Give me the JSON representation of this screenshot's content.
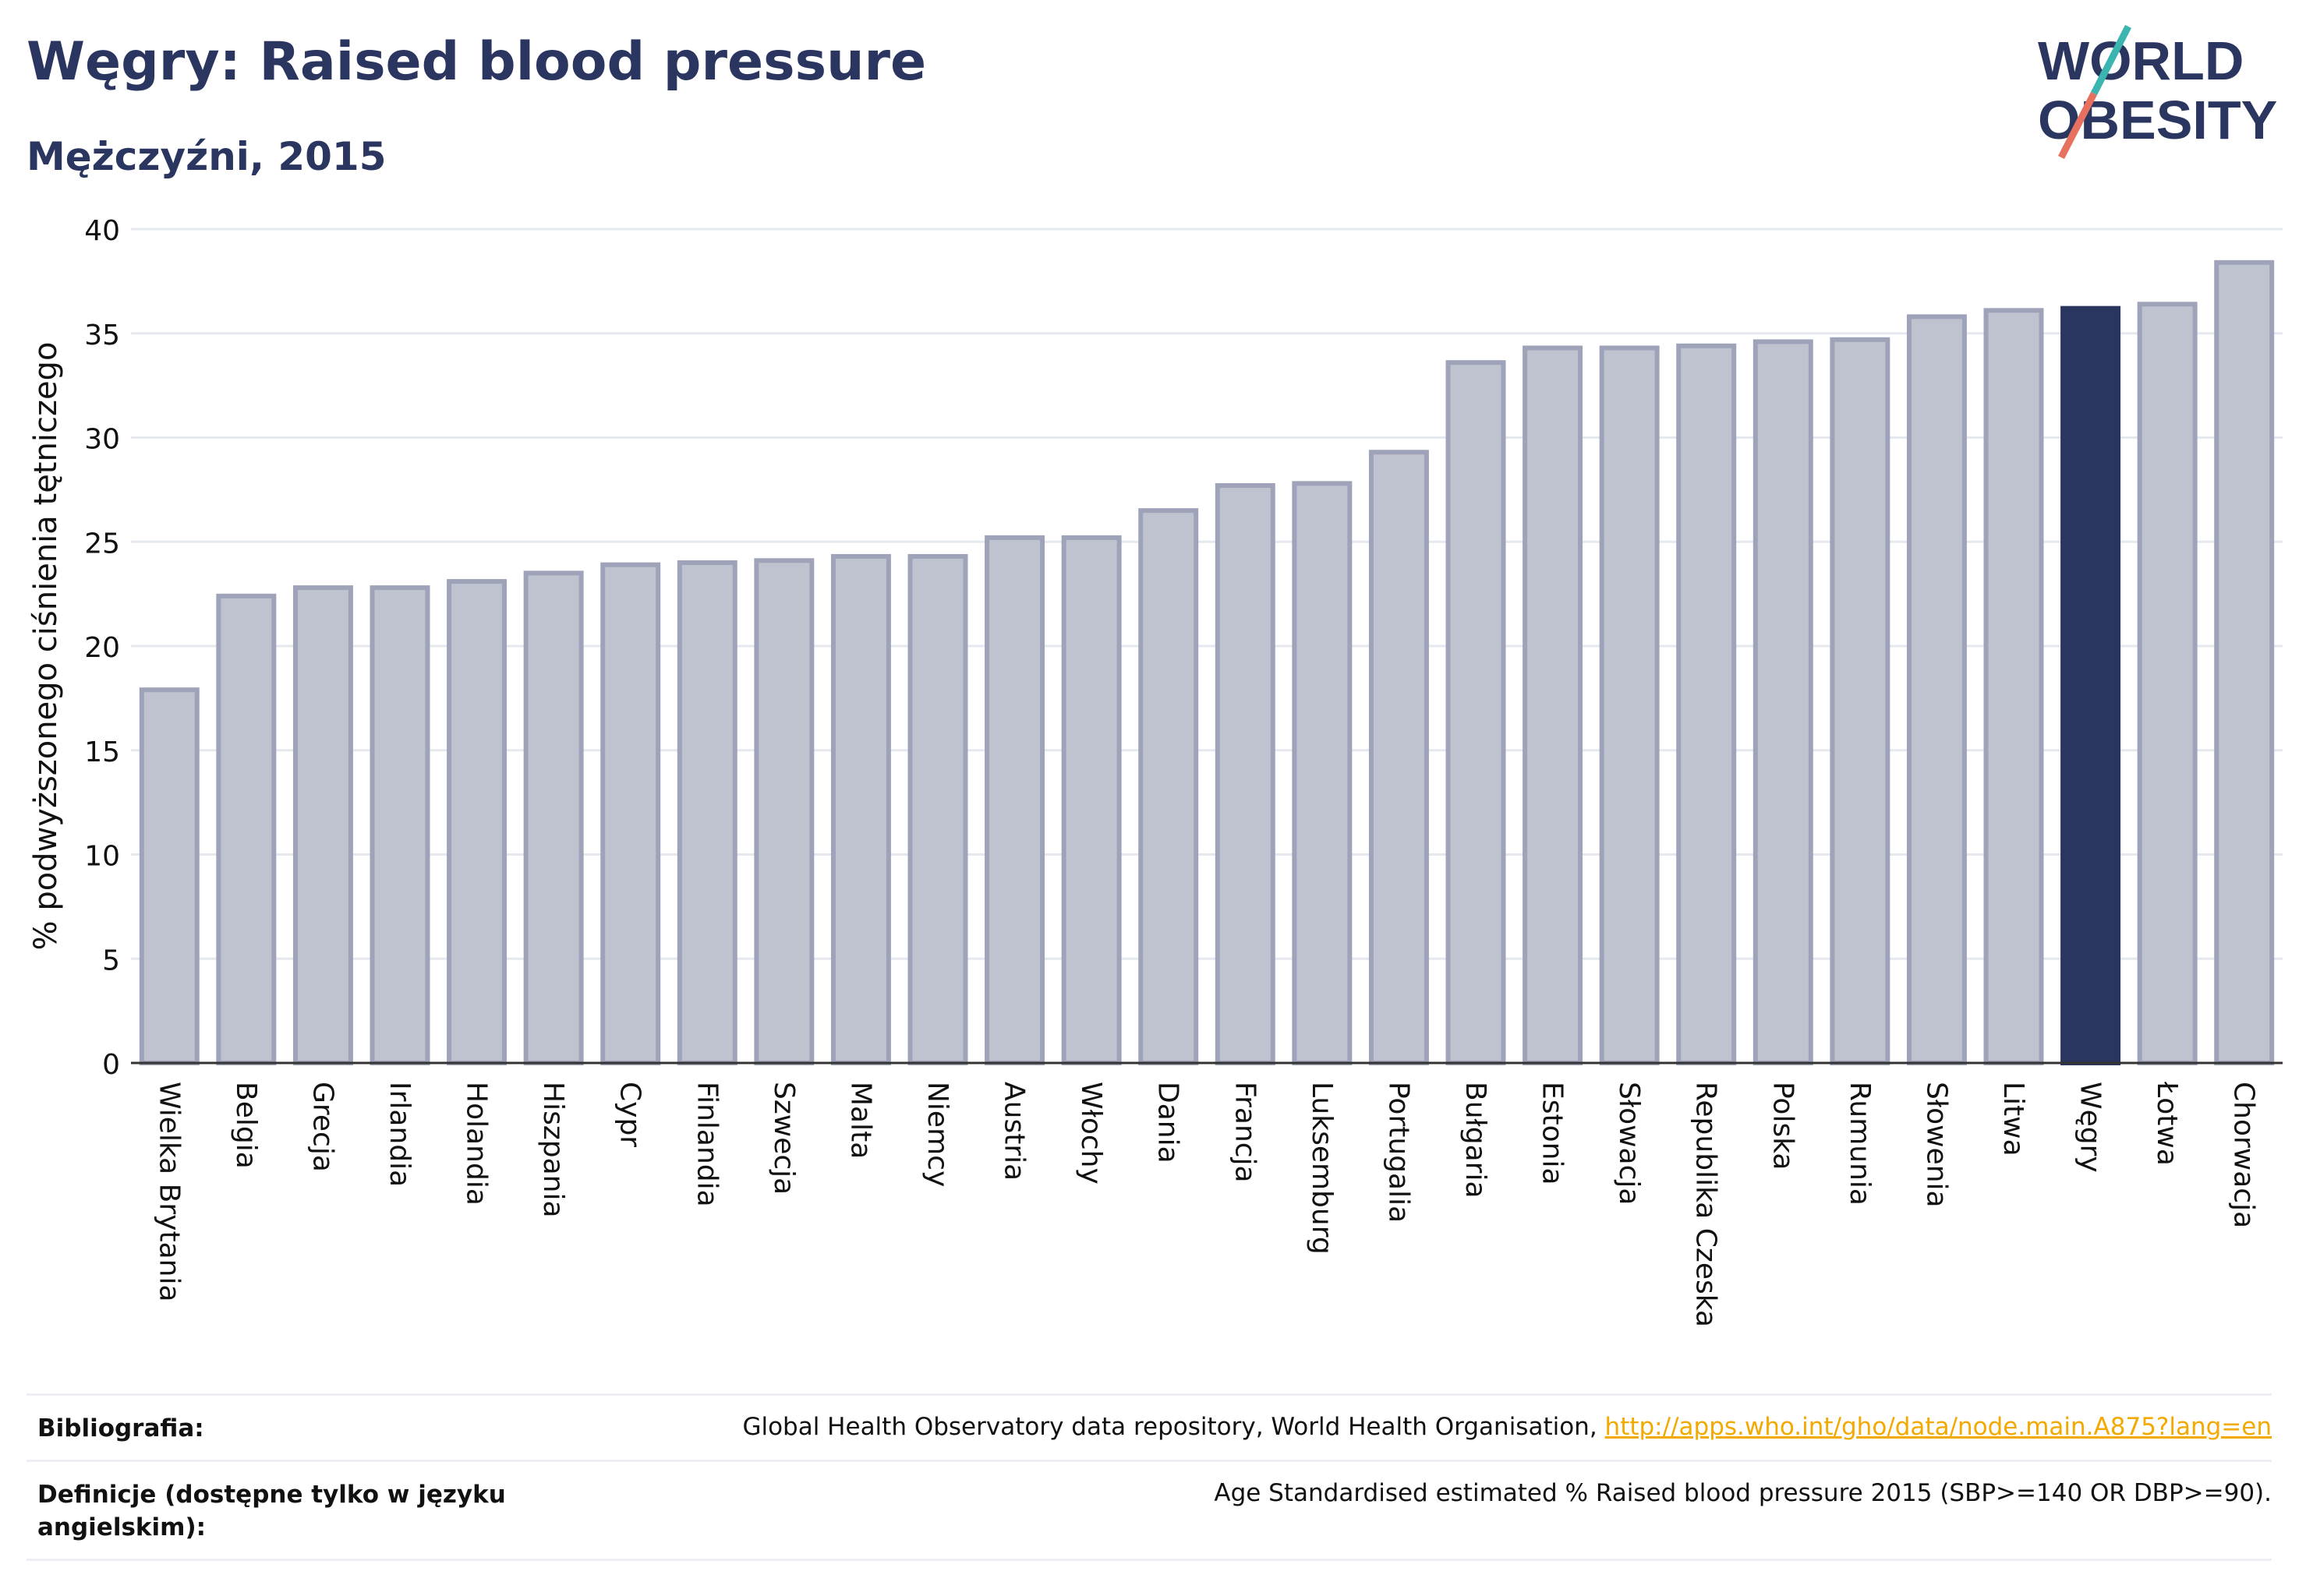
{
  "header": {
    "title": "Węgry: Raised blood pressure",
    "subtitle": "Mężczyźni, 2015",
    "logo_text": [
      "WORLD",
      "OBESITY"
    ]
  },
  "chart_data": {
    "type": "bar",
    "title": "Węgry: Raised blood pressure",
    "subtitle": "Mężczyźni, 2015",
    "xlabel": "",
    "ylabel": "% podwyższonego ciśnienia tętniczego",
    "ylim": [
      0,
      40
    ],
    "yticks": [
      0,
      5,
      10,
      15,
      20,
      25,
      30,
      35,
      40
    ],
    "grid": true,
    "highlight": "Węgry",
    "colors": {
      "bar": "#bfc2cf",
      "bar_edge": "#9ea3b9",
      "highlight": "#2a3560"
    },
    "categories": [
      "Wielka Brytania",
      "Belgia",
      "Grecja",
      "Irlandia",
      "Holandia",
      "Hiszpania",
      "Cypr",
      "Finlandia",
      "Szwecja",
      "Malta",
      "Niemcy",
      "Austria",
      "Włochy",
      "Dania",
      "Francja",
      "Luksemburg",
      "Portugalia",
      "Bułgaria",
      "Estonia",
      "Słowacja",
      "Republika Czeska",
      "Polska",
      "Rumunia",
      "Słowenia",
      "Litwa",
      "Węgry",
      "Łotwa",
      "Chorwacja"
    ],
    "values": [
      17.9,
      22.4,
      22.8,
      22.8,
      23.1,
      23.5,
      23.9,
      24.0,
      24.1,
      24.3,
      24.3,
      25.2,
      25.2,
      26.5,
      27.7,
      27.8,
      29.3,
      33.6,
      34.3,
      34.3,
      34.4,
      34.6,
      34.7,
      35.8,
      36.1,
      36.2,
      36.4,
      38.4
    ]
  },
  "footer": {
    "bibliography_label": "Bibliografia:",
    "bibliography_text": "Global Health Observatory data repository, World Health Organisation, ",
    "bibliography_link": "http://apps.who.int/gho/data/node.main.A875?lang=en",
    "definitions_label": "Definicje (dostępne tylko w języku angielskim):",
    "definitions_text": "Age Standardised estimated % Raised blood pressure 2015 (SBP>=140 OR DBP>=90)."
  }
}
